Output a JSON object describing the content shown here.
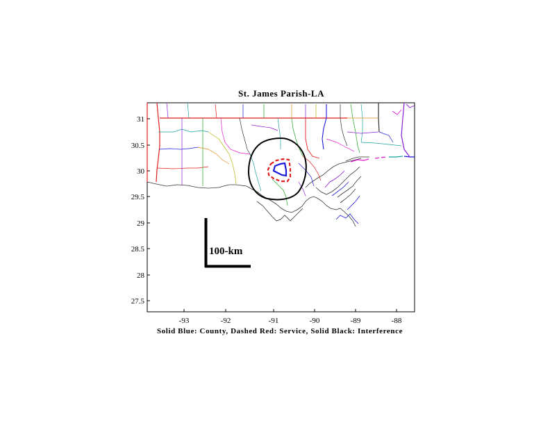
{
  "title": "St. James Parish-LA",
  "caption": "Solid Blue: County, Dashed Red: Service, Solid Black: Interference",
  "scale_bar_label": "100-km",
  "axes": {
    "x_ticks": [
      "-93",
      "-92",
      "-91",
      "-90",
      "-89",
      "-88"
    ],
    "y_ticks": [
      "31",
      "30.5",
      "30",
      "29.5",
      "29",
      "28.5",
      "28",
      "27.5"
    ],
    "x_range": [
      -93.8,
      -87.5
    ],
    "y_range": [
      27.3,
      31.3
    ]
  },
  "colors": {
    "county": "#1a1adb",
    "service": "#e21b1b",
    "interference": "#000000"
  }
}
